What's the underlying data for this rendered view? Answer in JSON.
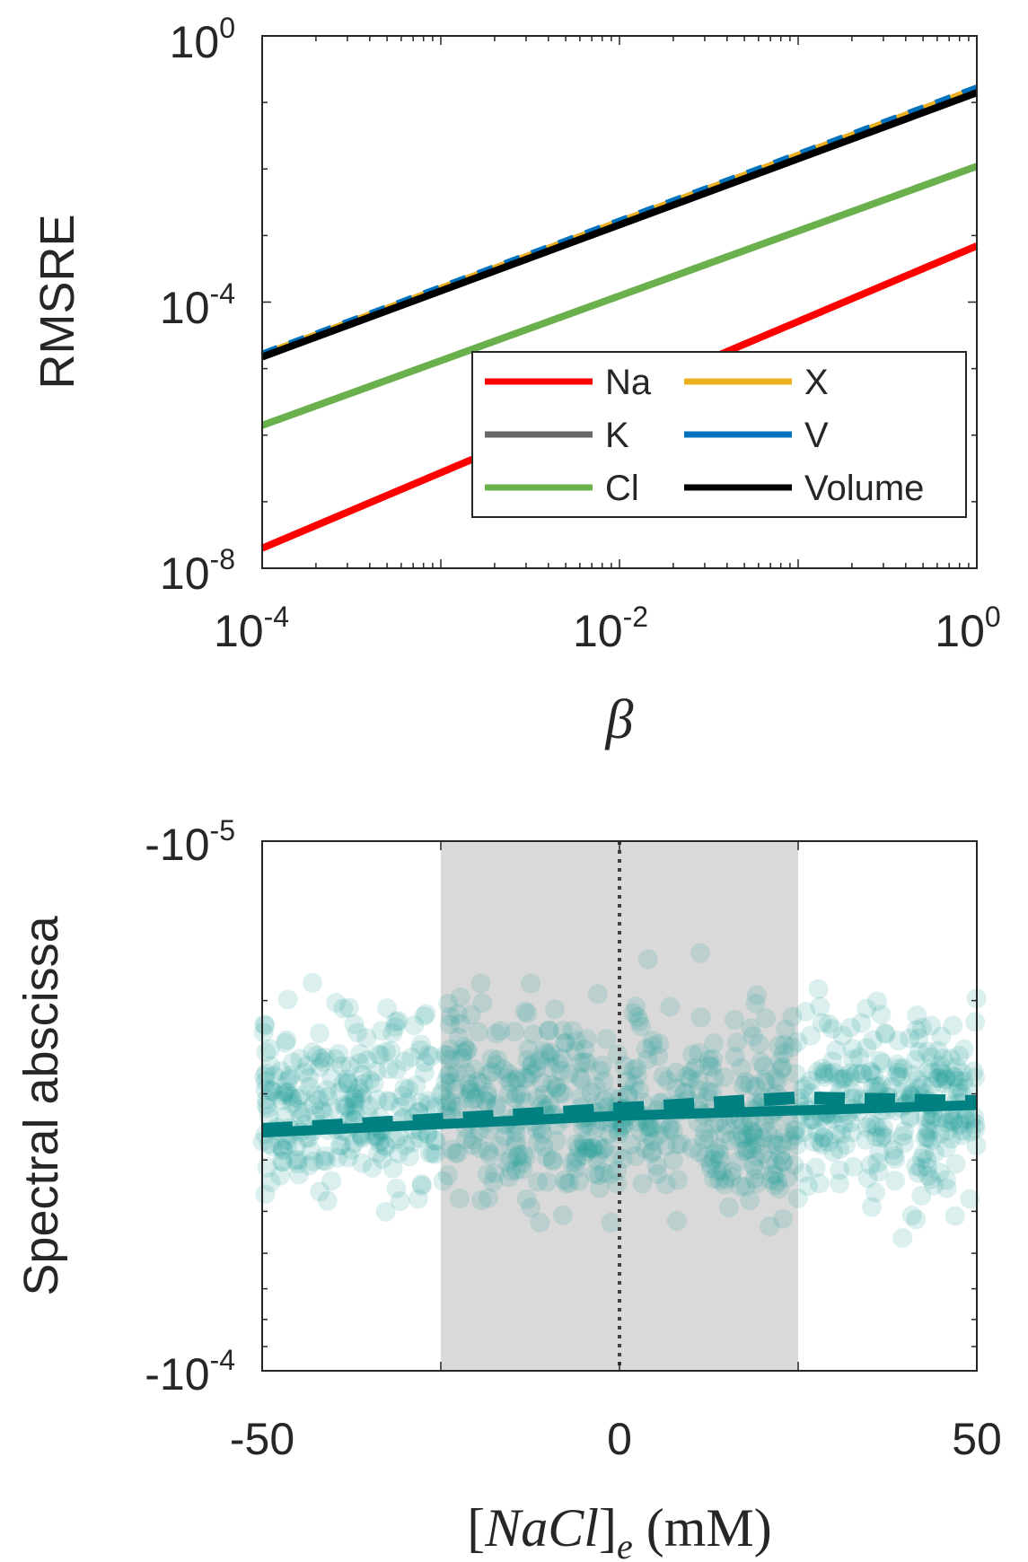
{
  "chart_data": [
    {
      "type": "line",
      "title": "",
      "xlabel": "β",
      "ylabel": "RMSRE",
      "xscale": "log",
      "yscale": "log",
      "xlim": [
        0.0001,
        1
      ],
      "ylim": [
        1e-08,
        1
      ],
      "x_ticks": [
        {
          "value": 0.0001,
          "base": "10",
          "exp": "-4"
        },
        {
          "value": 0.01,
          "base": "10",
          "exp": "-2"
        },
        {
          "value": 1,
          "base": "10",
          "exp": "0"
        }
      ],
      "y_ticks": [
        {
          "value": 1e-08,
          "base": "10",
          "exp": "-8"
        },
        {
          "value": 0.0001,
          "base": "10",
          "exp": "-4"
        },
        {
          "value": 1,
          "base": "10",
          "exp": "0"
        }
      ],
      "grid": false,
      "legend_position": "bottom-right",
      "series": [
        {
          "name": "Na",
          "color": "#ff0000",
          "x": [
            0.0001,
            1
          ],
          "y": [
            2e-08,
            0.0007
          ]
        },
        {
          "name": "K",
          "color": "#666666",
          "x": [
            0.0001,
            1
          ],
          "y": [
            1.6e-05,
            0.16
          ]
        },
        {
          "name": "Cl",
          "color": "#6ab04c",
          "x": [
            0.0001,
            1
          ],
          "y": [
            1.4e-06,
            0.011
          ]
        },
        {
          "name": "X",
          "color": "#edb120",
          "x": [
            0.0001,
            1
          ],
          "y": [
            1.6e-05,
            0.16
          ]
        },
        {
          "name": "V",
          "color": "#0072bd",
          "x": [
            0.0001,
            1
          ],
          "y": [
            1.7e-05,
            0.17
          ]
        },
        {
          "name": "Volume",
          "color": "#000000",
          "x": [
            0.0001,
            1
          ],
          "y": [
            1.5e-05,
            0.14
          ]
        }
      ]
    },
    {
      "type": "scatter",
      "title": "",
      "xlabel": "[NaCl]e (mM)",
      "ylabel": "Spectral abscissa",
      "xlim": [
        -50,
        50
      ],
      "yscale": "log (magnitude)",
      "ylim": [
        -1e-05,
        -0.0001
      ],
      "x_ticks": [
        -50,
        0,
        50
      ],
      "y_ticks": [
        {
          "value": -1e-05,
          "base": "-10",
          "exp": "-5"
        },
        {
          "value": -0.0001,
          "base": "-10",
          "exp": "-4"
        }
      ],
      "shaded_region": {
        "x": [
          -25,
          25
        ],
        "color": "#d9d9d9"
      },
      "reference_line": {
        "x": 0,
        "style": "dotted",
        "color": "#404040"
      },
      "point_color": "#1a9e96",
      "points_approx_count": 1000,
      "points_y_range": [
        -1.5e-05,
        -6.5e-05
      ],
      "fit_solid": {
        "color": "#008080",
        "x": [
          -50,
          0,
          50
        ],
        "y": [
          -3.55e-05,
          -3.3e-05,
          -3.15e-05
        ]
      },
      "fit_dashed": {
        "color": "#008080",
        "x": [
          -50,
          -25,
          0,
          25,
          50
        ],
        "y": [
          -3.5e-05,
          -3.35e-05,
          -3.2e-05,
          -3.05e-05,
          -3.1e-05
        ]
      },
      "grid": false
    }
  ]
}
